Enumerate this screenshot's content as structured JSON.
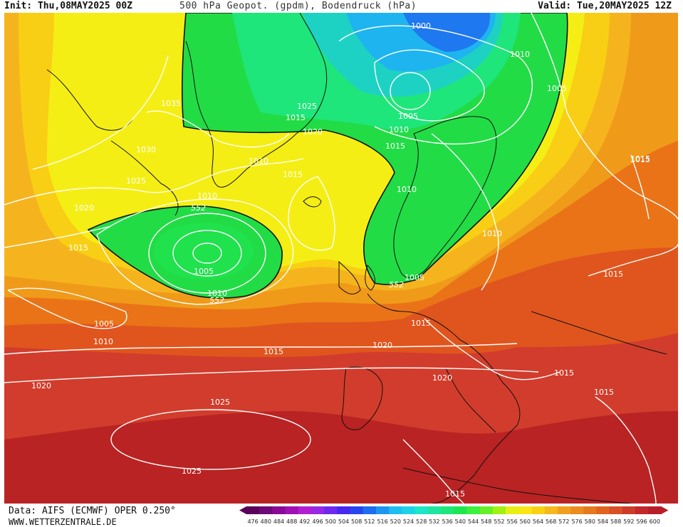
{
  "header": {
    "init": "Init: Thu,08MAY2025 00Z",
    "title": "500 hPa Geopot. (gpdm), Bodendruck (hPa)",
    "valid": "Valid: Tue,20MAY2025 12Z"
  },
  "footer": {
    "source": "Data: AIFS (ECMWF) OPER 0.250°",
    "website": "WWW.WETTERZENTRALE.DE"
  },
  "color_scale": {
    "labels": [
      "476",
      "480",
      "484",
      "488",
      "492",
      "496",
      "500",
      "504",
      "508",
      "512",
      "516",
      "520",
      "524",
      "528",
      "532",
      "536",
      "540",
      "544",
      "548",
      "552",
      "556",
      "560",
      "564",
      "568",
      "572",
      "576",
      "580",
      "584",
      "588",
      "592",
      "596",
      "600"
    ],
    "colors": [
      "#5a005a",
      "#6e0a78",
      "#8a0a96",
      "#a010b4",
      "#b41ed2",
      "#9628e6",
      "#6e28f0",
      "#4628f0",
      "#2846f0",
      "#1e6ef0",
      "#1e96f0",
      "#1ebef0",
      "#1ed2e6",
      "#1ee6c8",
      "#1ee6a0",
      "#1ee678",
      "#1ee650",
      "#3cf03c",
      "#64f028",
      "#a0f014",
      "#e6f014",
      "#fae614",
      "#fad214",
      "#f5b91e",
      "#f0a01e",
      "#eb8c1e",
      "#e6781e",
      "#e0641e",
      "#d7502a",
      "#cd3c2a",
      "#c3282a",
      "#b91e28"
    ]
  },
  "map": {
    "pressure_labels": [
      {
        "text": "1000"
      },
      {
        "text": "1010"
      },
      {
        "text": "1005"
      },
      {
        "text": "1015"
      },
      {
        "text": "1035"
      },
      {
        "text": "1025"
      },
      {
        "text": "1015"
      },
      {
        "text": "1020"
      },
      {
        "text": "1005"
      },
      {
        "text": "1010"
      },
      {
        "text": "1030"
      },
      {
        "text": "1015"
      },
      {
        "text": "1010"
      },
      {
        "text": "1015"
      },
      {
        "text": "1015"
      },
      {
        "text": "1025"
      },
      {
        "text": "1010"
      },
      {
        "text": "1020"
      },
      {
        "text": "1015"
      },
      {
        "text": "1010"
      },
      {
        "text": "1005"
      },
      {
        "text": "1010"
      },
      {
        "text": "1005"
      },
      {
        "text": "1010"
      },
      {
        "text": "1015"
      },
      {
        "text": "1005"
      },
      {
        "text": "1010"
      },
      {
        "text": "1015"
      },
      {
        "text": "1020"
      },
      {
        "text": "1015"
      },
      {
        "text": "1020"
      },
      {
        "text": "1020"
      },
      {
        "text": "1015"
      },
      {
        "text": "1015"
      },
      {
        "text": "1025"
      },
      {
        "text": "1025"
      },
      {
        "text": "1015"
      }
    ],
    "geopotential_labels": [
      {
        "text": "552"
      },
      {
        "text": "552"
      },
      {
        "text": "552"
      }
    ]
  }
}
